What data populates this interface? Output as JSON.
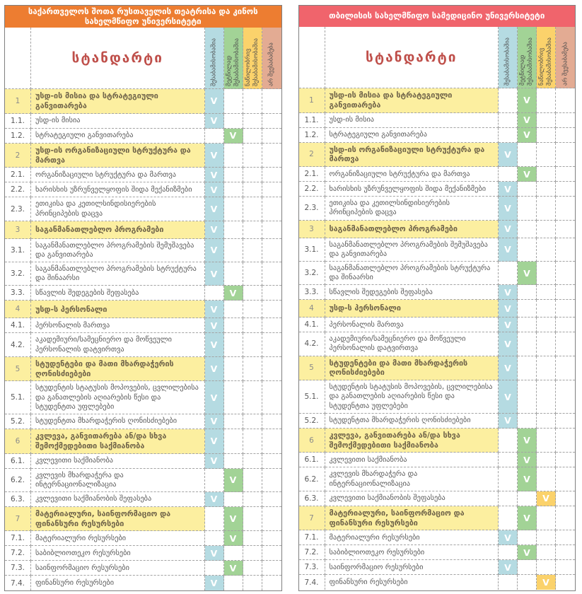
{
  "standard_header": "სტანდარტი",
  "check_glyph": "V",
  "legend_columns": [
    {
      "label": "შესაბამისობაშია",
      "color": "#b5dbe2"
    },
    {
      "label": "მეტწილად შესაბამისობაშია",
      "color": "#a2d396"
    },
    {
      "label": "ნაწილობრივ შესაბამისობაშია",
      "color": "#fbd26b"
    },
    {
      "label": "არ შეესაბამება",
      "color": "#e3ab93"
    }
  ],
  "rows": [
    {
      "num": "1",
      "label": "უსდ-ის მისია და სტრატეგიული განვითარება",
      "main": true
    },
    {
      "num": "1.1.",
      "label": "უსდ-ის მისია",
      "main": false
    },
    {
      "num": "1.2.",
      "label": "სტრატეგიული განვითარება",
      "main": false
    },
    {
      "num": "2",
      "label": "უსდ-ის ორგანიზაციული სტრუქტურა და მართვა",
      "main": true
    },
    {
      "num": "2.1.",
      "label": "ორგანიზაციული სტრუქტურა და მართვა",
      "main": false
    },
    {
      "num": "2.2.",
      "label": "ხარისხის უზრუნველყოფის შიდა მექანიზმები",
      "main": false
    },
    {
      "num": "2.3.",
      "label": "ეთიკისა და კეთილსინდისიერების პრინციპების დაცვა",
      "main": false
    },
    {
      "num": "3",
      "label": "საგანმანათლებლო პროგრამები",
      "main": true
    },
    {
      "num": "3.1.",
      "label": "საგანმანათლებლო პროგრამების შემუშავება და განვითარება",
      "main": false
    },
    {
      "num": "3.2.",
      "label": "საგანმანათლებლო პროგრამების სტრუქტურა და შინაარსი",
      "main": false
    },
    {
      "num": "3.3.",
      "label": "სწავლის შედეგების შეფასება",
      "main": false
    },
    {
      "num": "4",
      "label": "უსდ-ს პერსონალი",
      "main": true
    },
    {
      "num": "4.1.",
      "label": "პერსონალის მართვა",
      "main": false
    },
    {
      "num": "4.2.",
      "label": "აკადემიური/სამეცნიერო და მოწვეული პერსონალის დატვირთვა",
      "main": false
    },
    {
      "num": "5",
      "label": "სტუდენტები და მათი მხარდაჭერის ღონისძიებები",
      "main": true
    },
    {
      "num": "5.1.",
      "label": "სტუდენტის სტატუსის მოპოვების, ცვლილებისა და განათლების აღიარების წესი და სტუდენტთა უფლებები",
      "main": false
    },
    {
      "num": "5.2.",
      "label": "სტუდენტთა მხარდაჭერის ღონისძიებები",
      "main": false
    },
    {
      "num": "6",
      "label": "კვლევა, განვითარება ან/და სხვა შემოქმედებითი საქმიანობა",
      "main": true
    },
    {
      "num": "6.1.",
      "label": "კვლევითი საქმიანობა",
      "main": false
    },
    {
      "num": "6.2.",
      "label": "კვლევის მხარდაჭერა და ინტერნაციონალიზაცია",
      "main": false
    },
    {
      "num": "6.3.",
      "label": "კვლევითი საქმიანობის შეფასება",
      "main": false
    },
    {
      "num": "7",
      "label": "მატერიალური, საინფორმაციო და ფინანსური რესურსები",
      "main": true
    },
    {
      "num": "7.1.",
      "label": "მატერიალური რესურსები",
      "main": false
    },
    {
      "num": "7.2.",
      "label": "საბიბლიოთეკო რესურსები",
      "main": false
    },
    {
      "num": "7.3.",
      "label": "საინფორმაციო რესურსები",
      "main": false
    },
    {
      "num": "7.4.",
      "label": "ფინანსური რესურსები",
      "main": false
    }
  ],
  "tables": [
    {
      "title": "საქართველოს შოთა რუსთაველის თეატრისა და კინოს სახელმწიფო უნივერსიტეტი",
      "title_color": "#ed7d31",
      "marks": [
        1,
        1,
        2,
        1,
        1,
        1,
        1,
        1,
        1,
        1,
        2,
        1,
        1,
        1,
        1,
        1,
        1,
        1,
        1,
        2,
        1,
        2,
        2,
        1,
        2,
        1
      ]
    },
    {
      "title": "თბილისის სახელმწიფო სამედიცინო უნივერსიტეტი",
      "title_color": "#f0646c",
      "marks": [
        2,
        2,
        2,
        1,
        2,
        1,
        1,
        1,
        1,
        2,
        1,
        1,
        1,
        1,
        1,
        1,
        1,
        2,
        2,
        2,
        3,
        2,
        1,
        2,
        1,
        3
      ]
    }
  ]
}
